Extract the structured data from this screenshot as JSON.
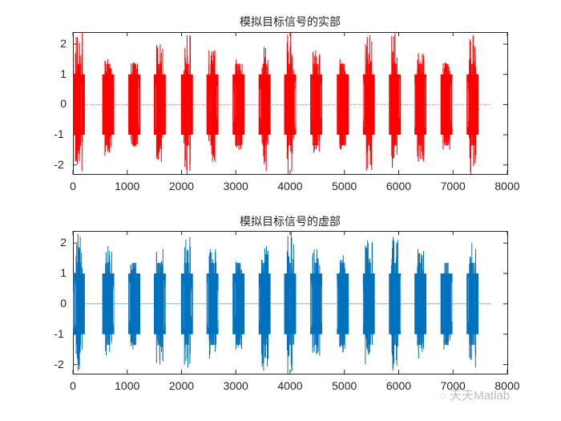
{
  "chart_data": [
    {
      "type": "line",
      "title": "模拟目标信号的实部",
      "xlabel": "",
      "ylabel": "",
      "xlim": [
        0,
        8000
      ],
      "ylim": [
        -2.3,
        2.4
      ],
      "xticks": [
        0,
        1000,
        2000,
        3000,
        4000,
        5000,
        6000,
        7000,
        8000
      ],
      "yticks": [
        -2,
        -1,
        0,
        1,
        2
      ],
      "grid": false,
      "line_color": "#ff0000",
      "baseline_style": "dotted",
      "series": [
        {
          "name": "real part",
          "description": "16 pulse bursts of amplitude mostly within [-1,1] with noise spikes up to about ±2.3; zero between bursts; signal length ~7500 samples",
          "burst_centers": [
            110,
            650,
            1130,
            1600,
            2100,
            2570,
            3050,
            3530,
            4000,
            4480,
            4970,
            5450,
            5930,
            6400,
            6880,
            7360
          ],
          "burst_width": 220,
          "burst_peak_max": [
            2.4,
            1.5,
            1.4,
            2.0,
            2.3,
            1.8,
            1.5,
            1.9,
            2.4,
            1.8,
            1.5,
            2.3,
            2.4,
            1.7,
            1.4,
            2.3
          ],
          "burst_peak_min": [
            -2.2,
            -1.7,
            -1.4,
            -1.9,
            -2.3,
            -1.9,
            -1.5,
            -2.2,
            -2.3,
            -1.6,
            -1.5,
            -2.2,
            -2.1,
            -1.9,
            -1.5,
            -2.3
          ]
        }
      ]
    },
    {
      "type": "line",
      "title": "模拟目标信号的虚部",
      "xlabel": "",
      "ylabel": "",
      "xlim": [
        0,
        8000
      ],
      "ylim": [
        -2.3,
        2.4
      ],
      "xticks": [
        0,
        1000,
        2000,
        3000,
        4000,
        5000,
        6000,
        7000,
        8000
      ],
      "yticks": [
        -2,
        -1,
        0,
        1,
        2
      ],
      "grid": false,
      "line_color": "#0072bd",
      "baseline_style": "solid",
      "series": [
        {
          "name": "imaginary part",
          "description": "16 pulse bursts of amplitude mostly within [-1,1] with noise spikes up to about ±2.3; zero between bursts; signal length ~7500 samples",
          "burst_centers": [
            110,
            650,
            1130,
            1600,
            2100,
            2570,
            3050,
            3530,
            4000,
            4480,
            4970,
            5450,
            5930,
            6400,
            6880,
            7360
          ],
          "burst_width": 220,
          "burst_peak_max": [
            2.3,
            1.9,
            1.3,
            1.8,
            2.2,
            1.8,
            1.4,
            1.9,
            2.4,
            1.8,
            1.6,
            2.1,
            2.2,
            1.8,
            1.0,
            2.0
          ],
          "burst_peak_min": [
            -2.2,
            -1.7,
            -1.5,
            -2.0,
            -2.1,
            -1.8,
            -1.5,
            -2.2,
            -2.3,
            -1.7,
            -1.6,
            -2.0,
            -2.2,
            -1.8,
            -1.5,
            -2.1
          ]
        }
      ]
    }
  ],
  "watermark": {
    "icon": "wechat-icon",
    "text": "天天Matlab"
  }
}
